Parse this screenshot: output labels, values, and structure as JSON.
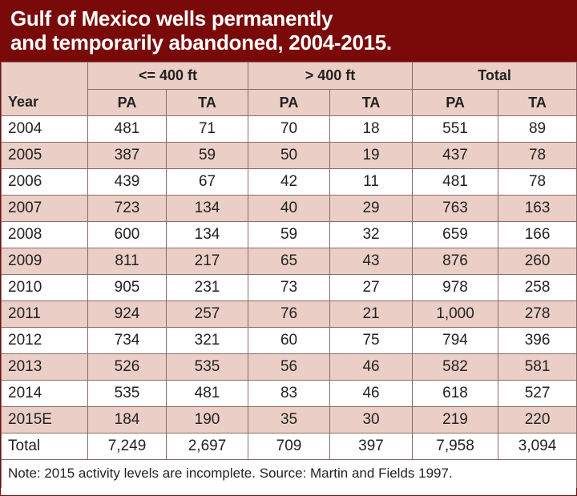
{
  "title": {
    "line1": "Gulf of Mexico wells permanently",
    "line2": "and temporarily abandoned, 2004-2015."
  },
  "header": {
    "year": "Year",
    "groups": [
      "<= 400 ft",
      "> 400 ft",
      "Total"
    ],
    "sub": [
      "PA",
      "TA",
      "PA",
      "TA",
      "PA",
      "TA"
    ]
  },
  "rows": [
    {
      "year": "2004",
      "v": [
        "481",
        "71",
        "70",
        "18",
        "551",
        "89"
      ]
    },
    {
      "year": "2005",
      "v": [
        "387",
        "59",
        "50",
        "19",
        "437",
        "78"
      ]
    },
    {
      "year": "2006",
      "v": [
        "439",
        "67",
        "42",
        "11",
        "481",
        "78"
      ]
    },
    {
      "year": "2007",
      "v": [
        "723",
        "134",
        "40",
        "29",
        "763",
        "163"
      ]
    },
    {
      "year": "2008",
      "v": [
        "600",
        "134",
        "59",
        "32",
        "659",
        "166"
      ]
    },
    {
      "year": "2009",
      "v": [
        "811",
        "217",
        "65",
        "43",
        "876",
        "260"
      ]
    },
    {
      "year": "2010",
      "v": [
        "905",
        "231",
        "73",
        "27",
        "978",
        "258"
      ]
    },
    {
      "year": "2011",
      "v": [
        "924",
        "257",
        "76",
        "21",
        "1,000",
        "278"
      ]
    },
    {
      "year": "2012",
      "v": [
        "734",
        "321",
        "60",
        "75",
        "794",
        "396"
      ]
    },
    {
      "year": "2013",
      "v": [
        "526",
        "535",
        "56",
        "46",
        "582",
        "581"
      ]
    },
    {
      "year": "2014",
      "v": [
        "535",
        "481",
        "83",
        "46",
        "618",
        "527"
      ]
    },
    {
      "year": "2015E",
      "v": [
        "184",
        "190",
        "35",
        "30",
        "219",
        "220"
      ]
    },
    {
      "year": "Total",
      "v": [
        "7,249",
        "2,697",
        "709",
        "397",
        "7,958",
        "3,094"
      ]
    }
  ],
  "note": "Note: 2015 activity levels are incomplete. Source: Martin and Fields 1997.",
  "colors": {
    "title_bg": "#7a0a0a",
    "alt_row_bg": "#ebcfc6",
    "border": "#8a6b66"
  }
}
